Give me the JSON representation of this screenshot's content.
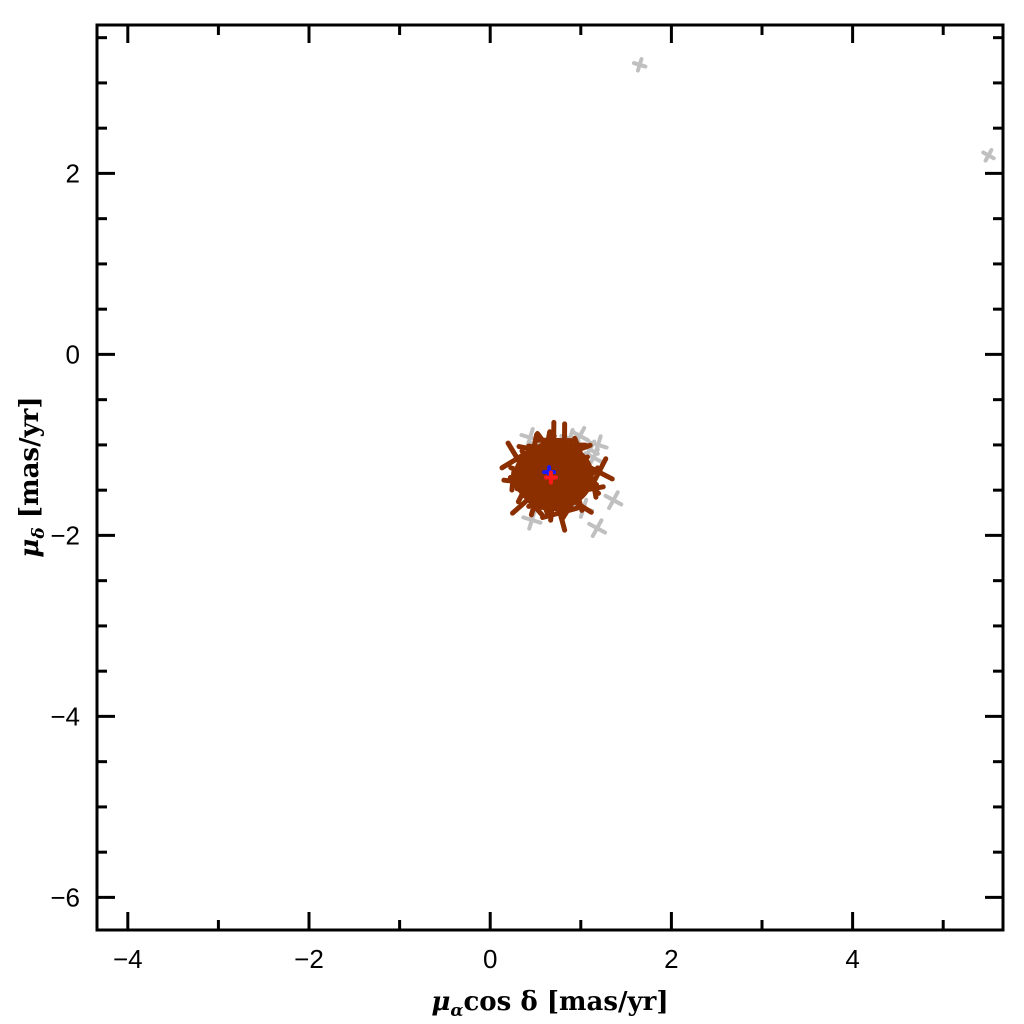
{
  "chart_data": {
    "type": "scatter",
    "title": "",
    "xlabel": {
      "symbol": "μ",
      "subscript": "α",
      "middle": "cos δ",
      "unit": " [mas/yr]"
    },
    "ylabel": {
      "symbol": "μ",
      "subscript": "δ",
      "unit": " [mas/yr]"
    },
    "xlim": [
      -4.34,
      5.66
    ],
    "ylim": [
      -6.36,
      3.64
    ],
    "xticks": [
      -4,
      -2,
      0,
      2,
      4
    ],
    "xtick_labels": [
      "−4",
      "−2",
      "0",
      "2",
      "4"
    ],
    "yticks": [
      -6,
      -4,
      -2,
      0,
      2
    ],
    "ytick_labels": [
      "−6",
      "−4",
      "−2",
      "0",
      "2"
    ],
    "x_minor_step": 1,
    "y_minor_step": 0.5,
    "grid": false,
    "colors": {
      "members": "#8b2e00",
      "field": "#c0c0c0",
      "mean_blue": "#1a1aff",
      "mean_red": "#ff1a1a"
    },
    "series": [
      {
        "marker": "cross",
        "color": "#c0c0c0",
        "points": [
          [
            1.65,
            3.2
          ],
          [
            5.5,
            2.2
          ],
          [
            0.44,
            -0.92
          ],
          [
            0.99,
            -0.9
          ],
          [
            1.19,
            -1.0
          ],
          [
            1.14,
            -1.14
          ],
          [
            0.88,
            -0.93
          ],
          [
            1.36,
            -1.61
          ],
          [
            0.46,
            -1.83
          ],
          [
            1.18,
            -1.92
          ],
          [
            1.03,
            -1.7
          ],
          [
            1.1,
            -1.05
          ],
          [
            0.52,
            -1.0
          ]
        ]
      },
      {
        "marker": "cross",
        "color": "#8b2e00",
        "points": [
          [
            0.7,
            -1.33
          ],
          [
            0.6,
            -1.2
          ],
          [
            0.8,
            -1.45
          ],
          [
            0.55,
            -1.4
          ],
          [
            0.85,
            -1.25
          ],
          [
            0.65,
            -1.55
          ],
          [
            0.75,
            -1.1
          ],
          [
            0.5,
            -1.3
          ],
          [
            0.9,
            -1.35
          ],
          [
            0.62,
            -1.05
          ],
          [
            0.78,
            -1.6
          ],
          [
            0.45,
            -1.2
          ],
          [
            0.95,
            -1.5
          ],
          [
            0.68,
            -1.7
          ],
          [
            0.4,
            -1.45
          ],
          [
            1.0,
            -1.2
          ],
          [
            0.58,
            -1.62
          ],
          [
            0.82,
            -1.0
          ],
          [
            0.35,
            -1.3
          ],
          [
            1.05,
            -1.4
          ],
          [
            0.72,
            -1.25
          ],
          [
            0.66,
            -1.42
          ],
          [
            0.52,
            -1.55
          ],
          [
            0.88,
            -1.15
          ],
          [
            0.3,
            -1.15
          ],
          [
            1.15,
            -1.48
          ],
          [
            0.48,
            -1.05
          ],
          [
            0.92,
            -1.62
          ],
          [
            0.6,
            -0.98
          ],
          [
            0.77,
            -1.75
          ],
          [
            0.25,
            -1.4
          ],
          [
            1.2,
            -1.3
          ],
          [
            0.42,
            -1.6
          ],
          [
            0.98,
            -1.05
          ],
          [
            0.7,
            -0.95
          ],
          [
            0.63,
            -1.3
          ],
          [
            0.74,
            -1.38
          ],
          [
            0.57,
            -1.28
          ],
          [
            0.83,
            -1.52
          ],
          [
            0.69,
            -1.18
          ]
        ]
      },
      {
        "marker": "cross",
        "color": "#1a1aff",
        "points": [
          [
            0.65,
            -1.3
          ]
        ]
      },
      {
        "marker": "cross",
        "color": "#ff1a1a",
        "points": [
          [
            0.67,
            -1.36
          ]
        ]
      }
    ]
  }
}
